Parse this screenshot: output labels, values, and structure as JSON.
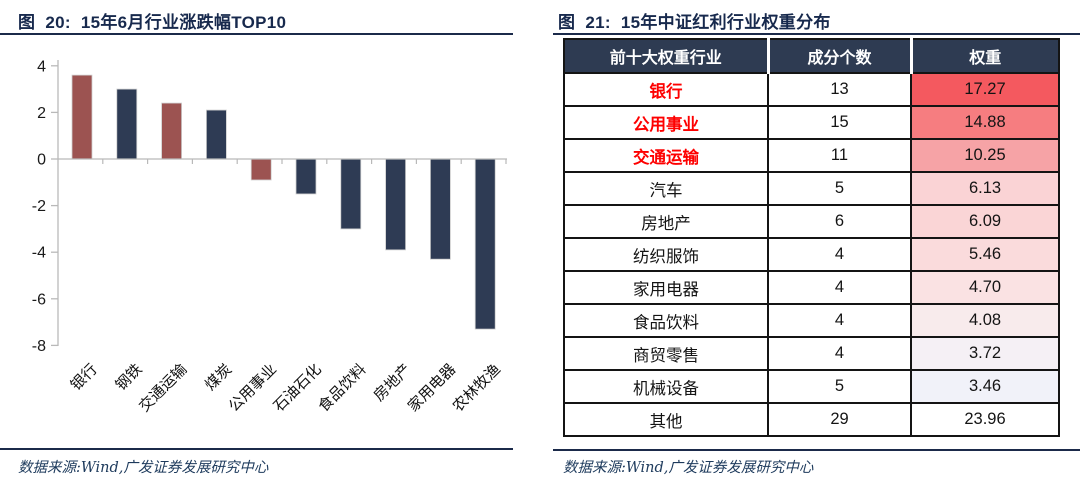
{
  "colors": {
    "title_navy": "#17294d",
    "bar_navy": "#2e3b54",
    "bar_red": "#9c5351",
    "table_header_bg": "#2e3b52",
    "red_text": "#fe0000",
    "axis_gray": "#b9b9b9",
    "source_navy": "#1d3a5c"
  },
  "left_panel": {
    "title": "图  20:  15年6月行业涨跌幅TOP10",
    "source": "数据来源:Wind,广发证券发展研究中心"
  },
  "right_panel": {
    "title": "图  21:  15年中证红利行业权重分布",
    "source": "数据来源:Wind,广发证券发展研究中心"
  },
  "chart_data": [
    {
      "type": "bar",
      "title": "15年6月行业涨跌幅TOP10",
      "categories": [
        "银行",
        "钢铁",
        "交通运输",
        "煤炭",
        "公用事业",
        "石油石化",
        "食品饮料",
        "房地产",
        "家用电器",
        "农林牧渔"
      ],
      "values": [
        3.6,
        3.0,
        2.4,
        2.1,
        -0.9,
        -1.5,
        -3.0,
        -3.9,
        -4.3,
        -7.3
      ],
      "bar_colors": [
        "#9c5351",
        "#2e3b54",
        "#9c5351",
        "#2e3b54",
        "#9c5351",
        "#2e3b54",
        "#2e3b54",
        "#2e3b54",
        "#2e3b54",
        "#2e3b54"
      ],
      "yticks": [
        4,
        2,
        0,
        -2,
        -4,
        -6,
        -8
      ],
      "ylim": [
        -8,
        4
      ],
      "xlabel": "",
      "ylabel": "",
      "grid": false,
      "legend": "none",
      "x_label_rotation_deg": -45
    },
    {
      "type": "table",
      "title": "15年中证红利行业权重分布",
      "columns": [
        "前十大权重行业",
        "成分个数",
        "权重"
      ],
      "rows": [
        {
          "industry": "银行",
          "count": "13",
          "weight": "17.27",
          "highlight": true,
          "weight_bg": "#f4595f"
        },
        {
          "industry": "公用事业",
          "count": "15",
          "weight": "14.88",
          "highlight": true,
          "weight_bg": "#f67d80"
        },
        {
          "industry": "交通运输",
          "count": "11",
          "weight": "10.25",
          "highlight": true,
          "weight_bg": "#f6a3a6"
        },
        {
          "industry": "汽车",
          "count": "5",
          "weight": "6.13",
          "highlight": false,
          "weight_bg": "#fad3d5"
        },
        {
          "industry": "房地产",
          "count": "6",
          "weight": "6.09",
          "highlight": false,
          "weight_bg": "#fad5d6"
        },
        {
          "industry": "纺织服饰",
          "count": "4",
          "weight": "5.46",
          "highlight": false,
          "weight_bg": "#fadbdc"
        },
        {
          "industry": "家用电器",
          "count": "4",
          "weight": "4.70",
          "highlight": false,
          "weight_bg": "#fae2e3"
        },
        {
          "industry": "食品饮料",
          "count": "4",
          "weight": "4.08",
          "highlight": false,
          "weight_bg": "#f8ebec"
        },
        {
          "industry": "商贸零售",
          "count": "4",
          "weight": "3.72",
          "highlight": false,
          "weight_bg": "#f5f0f5"
        },
        {
          "industry": "机械设备",
          "count": "5",
          "weight": "3.46",
          "highlight": false,
          "weight_bg": "#f1f2f9"
        },
        {
          "industry": "其他",
          "count": "29",
          "weight": "23.96",
          "highlight": false,
          "weight_bg": "#ffffff"
        }
      ]
    }
  ]
}
